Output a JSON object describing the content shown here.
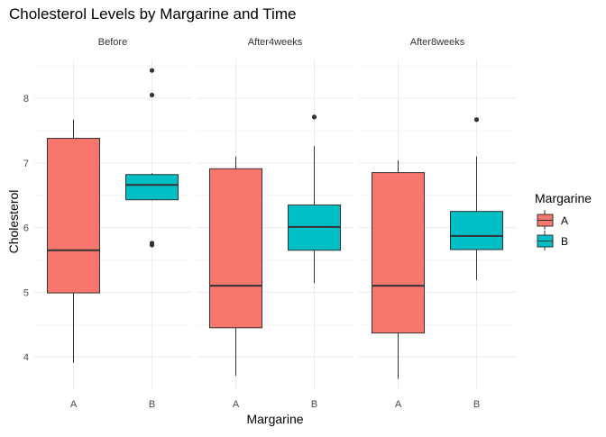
{
  "chart_data": {
    "type": "box",
    "title": "Cholesterol Levels by Margarine and Time",
    "xlabel": "Margarine",
    "ylabel": "Cholesterol",
    "ylim": [
      3.5,
      8.6
    ],
    "y_ticks": [
      4,
      5,
      6,
      7,
      8
    ],
    "grid": true,
    "legend": {
      "title": "Margarine",
      "position": "right",
      "entries": [
        "A",
        "B"
      ]
    },
    "colors": {
      "A": "#F8766D",
      "B": "#00BFC4"
    },
    "categories": [
      "A",
      "B"
    ],
    "facets": [
      {
        "label": "Before",
        "boxes": [
          {
            "group": "A",
            "min": 3.91,
            "q1": 4.99,
            "median": 5.65,
            "q3": 7.38,
            "max": 7.67,
            "outliers": []
          },
          {
            "group": "B",
            "min": 6.42,
            "q1": 6.43,
            "median": 6.66,
            "q3": 6.82,
            "max": 6.84,
            "outliers": [
              5.73,
              5.76,
              8.05,
              8.43
            ]
          }
        ]
      },
      {
        "label": "After4weeks",
        "boxes": [
          {
            "group": "A",
            "min": 3.71,
            "q1": 4.45,
            "median": 5.1,
            "q3": 6.91,
            "max": 7.1,
            "outliers": []
          },
          {
            "group": "B",
            "min": 5.14,
            "q1": 5.65,
            "median": 6.01,
            "q3": 6.35,
            "max": 7.26,
            "outliers": [
              7.71
            ]
          }
        ]
      },
      {
        "label": "After8weeks",
        "boxes": [
          {
            "group": "A",
            "min": 3.66,
            "q1": 4.37,
            "median": 5.1,
            "q3": 6.85,
            "max": 7.04,
            "outliers": []
          },
          {
            "group": "B",
            "min": 5.19,
            "q1": 5.66,
            "median": 5.87,
            "q3": 6.25,
            "max": 7.1,
            "outliers": [
              7.67
            ]
          }
        ]
      }
    ]
  }
}
